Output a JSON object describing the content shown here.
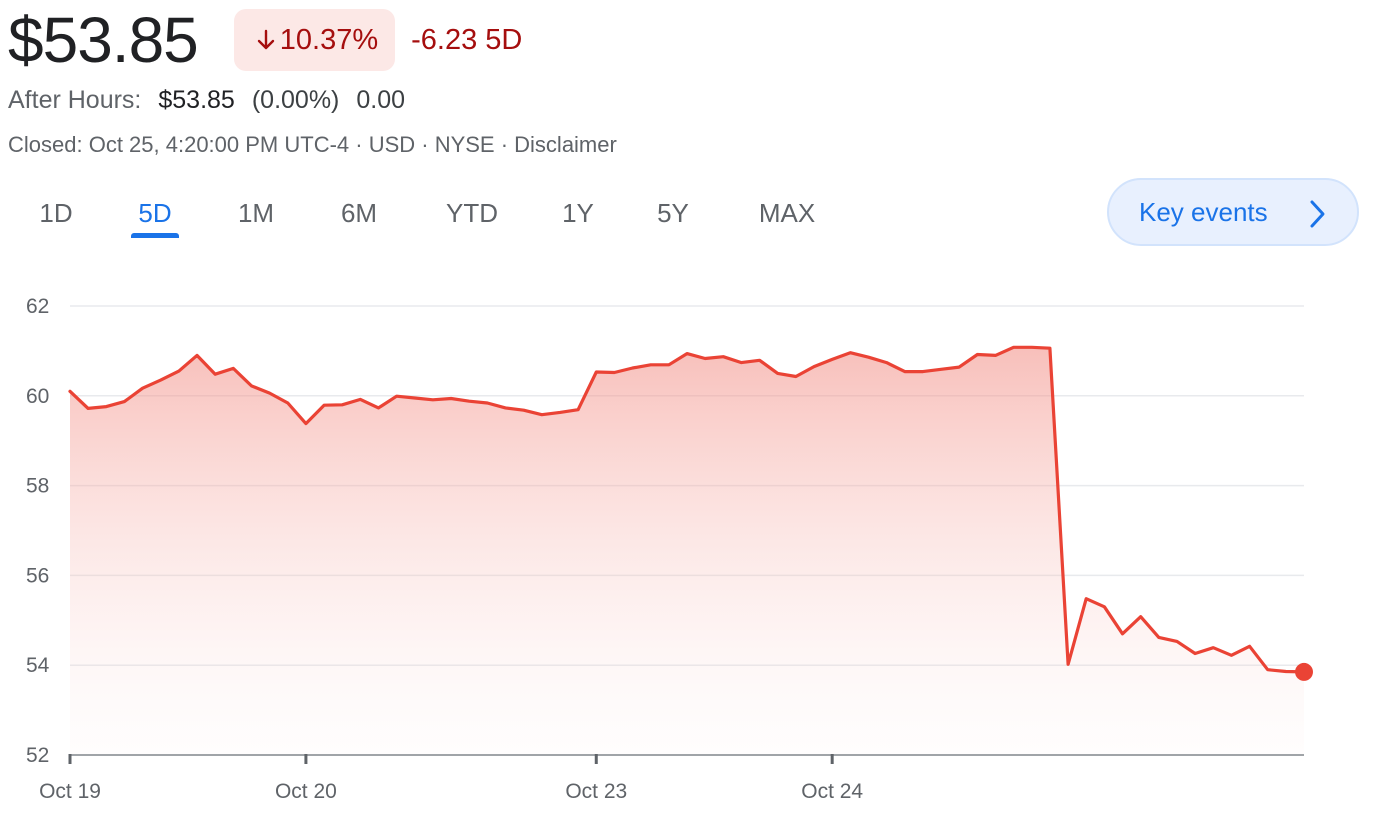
{
  "quote": {
    "price": "$53.85",
    "change_pct": "10.37%",
    "change_direction": "down",
    "change_abs": "-6.23",
    "change_period": "5D",
    "negative_color": "#a50e0e"
  },
  "after_hours": {
    "label": "After Hours:",
    "price": "$53.85",
    "pct": "(0.00%)",
    "abs": "0.00"
  },
  "meta": {
    "line": "Closed: Oct 25, 4:20:00 PM UTC-4 · USD · NYSE · Disclaimer"
  },
  "tabs": [
    {
      "label": "1D",
      "active": false
    },
    {
      "label": "5D",
      "active": true
    },
    {
      "label": "1M",
      "active": false
    },
    {
      "label": "6M",
      "active": false
    },
    {
      "label": "YTD",
      "active": false
    },
    {
      "label": "1Y",
      "active": false
    },
    {
      "label": "5Y",
      "active": false
    },
    {
      "label": "MAX",
      "active": false
    }
  ],
  "key_events": {
    "label": "Key events",
    "icon": "chevron-right-icon"
  },
  "colors": {
    "accent": "#1a73e8",
    "line": "#ea4335"
  },
  "chart_data": {
    "type": "area",
    "title": "",
    "xlabel": "",
    "ylabel": "",
    "ylim": [
      52,
      62
    ],
    "y_ticks": [
      62,
      60,
      58,
      56,
      54,
      52
    ],
    "x_tick_labels": [
      "Oct 19",
      "Oct 20",
      "Oct 23",
      "Oct 24"
    ],
    "grid": true,
    "last_point_marker": true,
    "series": [
      {
        "values": [
          60.1,
          59.72,
          59.76,
          59.87,
          60.17,
          60.35,
          60.55,
          60.9,
          60.48,
          60.61,
          60.22,
          60.06,
          59.84,
          59.38,
          59.79,
          59.8,
          59.92,
          59.73,
          59.99,
          59.95,
          59.91,
          59.94,
          59.88,
          59.84,
          59.73,
          59.68,
          59.58,
          59.63,
          59.69,
          60.53,
          60.52,
          60.62,
          60.69,
          60.69,
          60.94,
          60.83,
          60.87,
          60.74,
          60.79,
          60.5,
          60.43,
          60.65,
          60.81,
          60.96,
          60.86,
          60.74,
          60.54,
          60.54,
          60.59,
          60.64,
          60.92,
          60.9,
          61.08,
          61.08,
          61.06,
          54.02,
          55.48,
          55.3,
          54.7,
          55.08,
          54.62,
          54.53,
          54.26,
          54.39,
          54.22,
          54.42,
          53.9,
          53.86,
          53.85
        ]
      }
    ]
  }
}
